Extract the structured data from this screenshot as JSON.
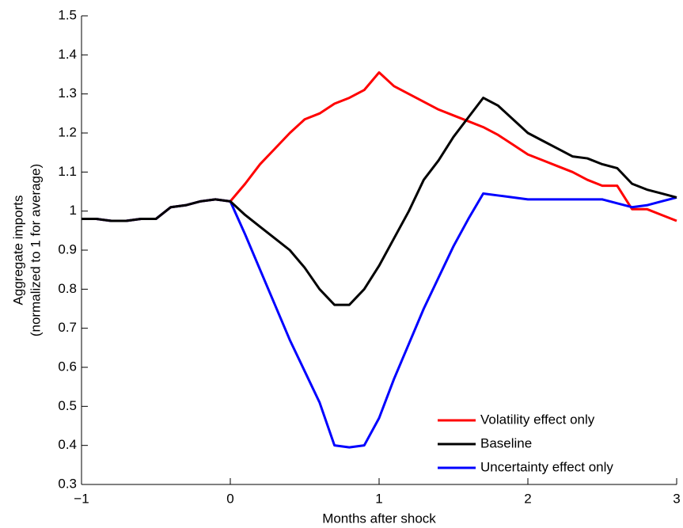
{
  "chart_data": {
    "type": "line",
    "xlabel": "Months after shock",
    "ylabel": [
      "Aggregate imports",
      "(normalized to 1 for average)"
    ],
    "x": [
      -1,
      -0.9,
      -0.8,
      -0.7,
      -0.6,
      -0.5,
      -0.4,
      -0.3,
      -0.2,
      -0.1,
      0,
      0.1,
      0.2,
      0.3,
      0.4,
      0.5,
      0.6,
      0.7,
      0.8,
      0.9,
      1,
      1.1,
      1.2,
      1.3,
      1.4,
      1.5,
      1.6,
      1.7,
      1.8,
      1.9,
      2,
      2.1,
      2.2,
      2.3,
      2.4,
      2.5,
      2.6,
      2.7,
      2.8,
      2.9,
      3
    ],
    "series": [
      {
        "name": "Volatility effect only",
        "color": "#ff0000",
        "values": [
          0.98,
          0.98,
          0.975,
          0.975,
          0.98,
          0.98,
          1.01,
          1.015,
          1.025,
          1.03,
          1.025,
          1.07,
          1.12,
          1.16,
          1.2,
          1.235,
          1.25,
          1.275,
          1.29,
          1.31,
          1.355,
          1.32,
          1.3,
          1.28,
          1.26,
          1.245,
          1.23,
          1.215,
          1.195,
          1.17,
          1.145,
          1.13,
          1.115,
          1.1,
          1.08,
          1.065,
          1.065,
          1.005,
          1.005,
          0.99,
          0.975
        ]
      },
      {
        "name": "Baseline",
        "color": "#000000",
        "values": [
          0.98,
          0.98,
          0.975,
          0.975,
          0.98,
          0.98,
          1.01,
          1.015,
          1.025,
          1.03,
          1.025,
          0.99,
          0.96,
          0.93,
          0.9,
          0.855,
          0.8,
          0.76,
          0.76,
          0.8,
          0.86,
          0.93,
          1.0,
          1.08,
          1.13,
          1.19,
          1.24,
          1.29,
          1.27,
          1.235,
          1.2,
          1.18,
          1.16,
          1.14,
          1.135,
          1.12,
          1.11,
          1.07,
          1.055,
          1.045,
          1.035
        ]
      },
      {
        "name": "Uncertainty effect only",
        "color": "#0000ff",
        "values": [
          0.98,
          0.98,
          0.975,
          0.975,
          0.98,
          0.98,
          1.01,
          1.015,
          1.025,
          1.03,
          1.025,
          0.94,
          0.85,
          0.76,
          0.67,
          0.59,
          0.51,
          0.4,
          0.395,
          0.4,
          0.47,
          0.57,
          0.66,
          0.75,
          0.83,
          0.91,
          0.98,
          1.045,
          1.04,
          1.035,
          1.03,
          1.03,
          1.03,
          1.03,
          1.03,
          1.03,
          1.02,
          1.01,
          1.015,
          1.025,
          1.035
        ]
      }
    ],
    "xlim": [
      -1,
      3
    ],
    "xticks": [
      {
        "value": -1,
        "label": "−1"
      },
      0,
      1,
      2,
      3
    ],
    "ylim": [
      0.3,
      1.5
    ],
    "yticks": [
      0.3,
      0.4,
      0.5,
      0.6,
      0.7,
      0.8,
      0.9,
      1,
      1.1,
      1.2,
      1.3,
      1.4,
      1.5
    ],
    "grid": false,
    "legend": "lower right"
  }
}
